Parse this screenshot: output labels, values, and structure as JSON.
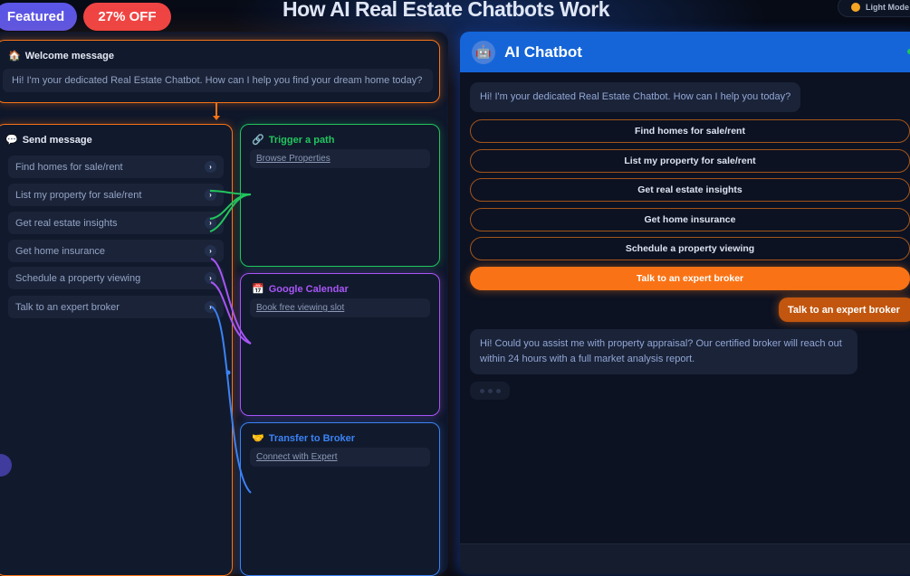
{
  "badges": {
    "featured": "Featured",
    "discount": "27% OFF"
  },
  "page_title": "How AI Real Estate Chatbots Work",
  "theme_toggle": {
    "label": "Light Mode",
    "icon": "sun-icon"
  },
  "builder": {
    "welcome": {
      "title": "Welcome message",
      "icon": "house-icon",
      "message": "Hi! I'm your dedicated Real Estate Chatbot. How can I help you find your dream home today?"
    },
    "send": {
      "title": "Send message",
      "icon": "speech-bubble-icon",
      "options": [
        {
          "label": "Find homes for sale/rent"
        },
        {
          "label": "List my property for sale/rent"
        },
        {
          "label": "Get real estate insights"
        },
        {
          "label": "Get home insurance"
        },
        {
          "label": "Schedule a property viewing"
        },
        {
          "label": "Talk to an expert broker"
        }
      ]
    },
    "trigger": {
      "title": "Trigger a path",
      "icon": "link-icon",
      "action": "Browse Properties",
      "color": "#22c55e"
    },
    "calendar": {
      "title": "Google Calendar",
      "icon": "calendar-icon",
      "action": "Book free viewing slot",
      "color": "#a855f7"
    },
    "broker": {
      "title": "Transfer to Broker",
      "icon": "handshake-icon",
      "action": "Connect with Expert",
      "color": "#3b82f6"
    }
  },
  "chat": {
    "title": "AI Chatbot",
    "header_color": "#1565d8",
    "greeting": "Hi! I'm your dedicated Real Estate Chatbot. How can I help you today?",
    "quick_replies": [
      {
        "label": "Find homes for sale/rent",
        "selected": false
      },
      {
        "label": "List my property for sale/rent",
        "selected": false
      },
      {
        "label": "Get real estate insights",
        "selected": false
      },
      {
        "label": "Get home insurance",
        "selected": false
      },
      {
        "label": "Schedule a property viewing",
        "selected": false
      },
      {
        "label": "Talk to an expert broker",
        "selected": true
      }
    ],
    "user_message": "Talk to an expert broker",
    "bot_reply": "Hi! Could you assist me with property appraisal? Our certified broker will reach out within 24 hours with a full market analysis report.",
    "accent": "#f97316"
  }
}
